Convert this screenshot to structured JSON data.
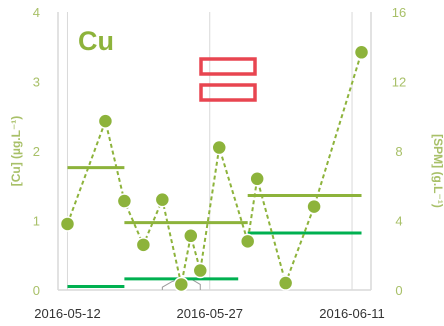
{
  "chart_data": {
    "type": "line",
    "title": "Cu",
    "ylabel_left": "[Cu] (µg.L⁻¹)",
    "ylabel_right": "[SPM] (g.L⁻¹)",
    "ylim_left": [
      0,
      4
    ],
    "ylim_right": [
      0,
      16
    ],
    "yticks_left": [
      "0",
      "1",
      "2",
      "3",
      "4"
    ],
    "yticks_right": [
      "0",
      "4",
      "8",
      "12",
      "16"
    ],
    "x_range": [
      "2016-05-11",
      "2016-06-13"
    ],
    "x_ticks": [
      "2016-05-12",
      "2016-05-27",
      "2016-06-11"
    ],
    "grid": "vertical",
    "colors": {
      "primary": "#8db33b",
      "marker_edge": "#ffffff",
      "grid": "#d9d9d9",
      "green_segments": "#00b050",
      "spm_trace": "#9a9a9a",
      "legend_box": "#e84550"
    },
    "series": [
      {
        "type": "line-markers",
        "points": [
          {
            "x": "2016-05-12",
            "y": 0.95
          },
          {
            "x": "2016-05-16",
            "y": 2.43
          },
          {
            "x": "2016-05-18",
            "y": 1.28
          },
          {
            "x": "2016-05-20",
            "y": 0.65
          },
          {
            "x": "2016-05-22",
            "y": 1.3
          },
          {
            "x": "2016-05-24",
            "y": 0.08
          },
          {
            "x": "2016-05-25",
            "y": 0.78
          },
          {
            "x": "2016-05-26",
            "y": 0.28
          },
          {
            "x": "2016-05-28",
            "y": 2.05
          },
          {
            "x": "2016-05-31",
            "y": 0.7
          },
          {
            "x": "2016-06-01",
            "y": 1.6
          },
          {
            "x": "2016-06-04",
            "y": 0.1
          },
          {
            "x": "2016-06-07",
            "y": 1.2
          },
          {
            "x": "2016-06-12",
            "y": 3.42
          }
        ]
      },
      {
        "type": "horizontal-segments",
        "color": "#8db33b",
        "segments": [
          {
            "x_start": "2016-05-12",
            "x_end": "2016-05-18",
            "y": 1.76
          },
          {
            "x_start": "2016-05-18",
            "x_end": "2016-05-31",
            "y": 0.97
          },
          {
            "x_start": "2016-05-31",
            "x_end": "2016-06-12",
            "y": 1.36
          }
        ]
      },
      {
        "type": "horizontal-segments",
        "color": "#00b050",
        "segments": [
          {
            "x_start": "2016-05-12",
            "x_end": "2016-05-18",
            "y": 0.05
          },
          {
            "x_start": "2016-05-18",
            "x_end": "2016-05-30",
            "y": 0.16
          },
          {
            "x_start": "2016-05-31",
            "x_end": "2016-06-12",
            "y": 0.82
          }
        ]
      },
      {
        "type": "trace",
        "color": "#9a9a9a",
        "points": [
          {
            "x": "2016-05-22",
            "y": 0.0
          },
          {
            "x": "2016-05-22",
            "y": 0.04
          },
          {
            "x": "2016-05-23",
            "y": 0.12
          },
          {
            "x": "2016-05-24",
            "y": 0.16
          },
          {
            "x": "2016-05-25",
            "y": 0.16
          },
          {
            "x": "2016-05-26",
            "y": 0.08
          },
          {
            "x": "2016-05-26",
            "y": 0.0
          }
        ]
      }
    ]
  }
}
